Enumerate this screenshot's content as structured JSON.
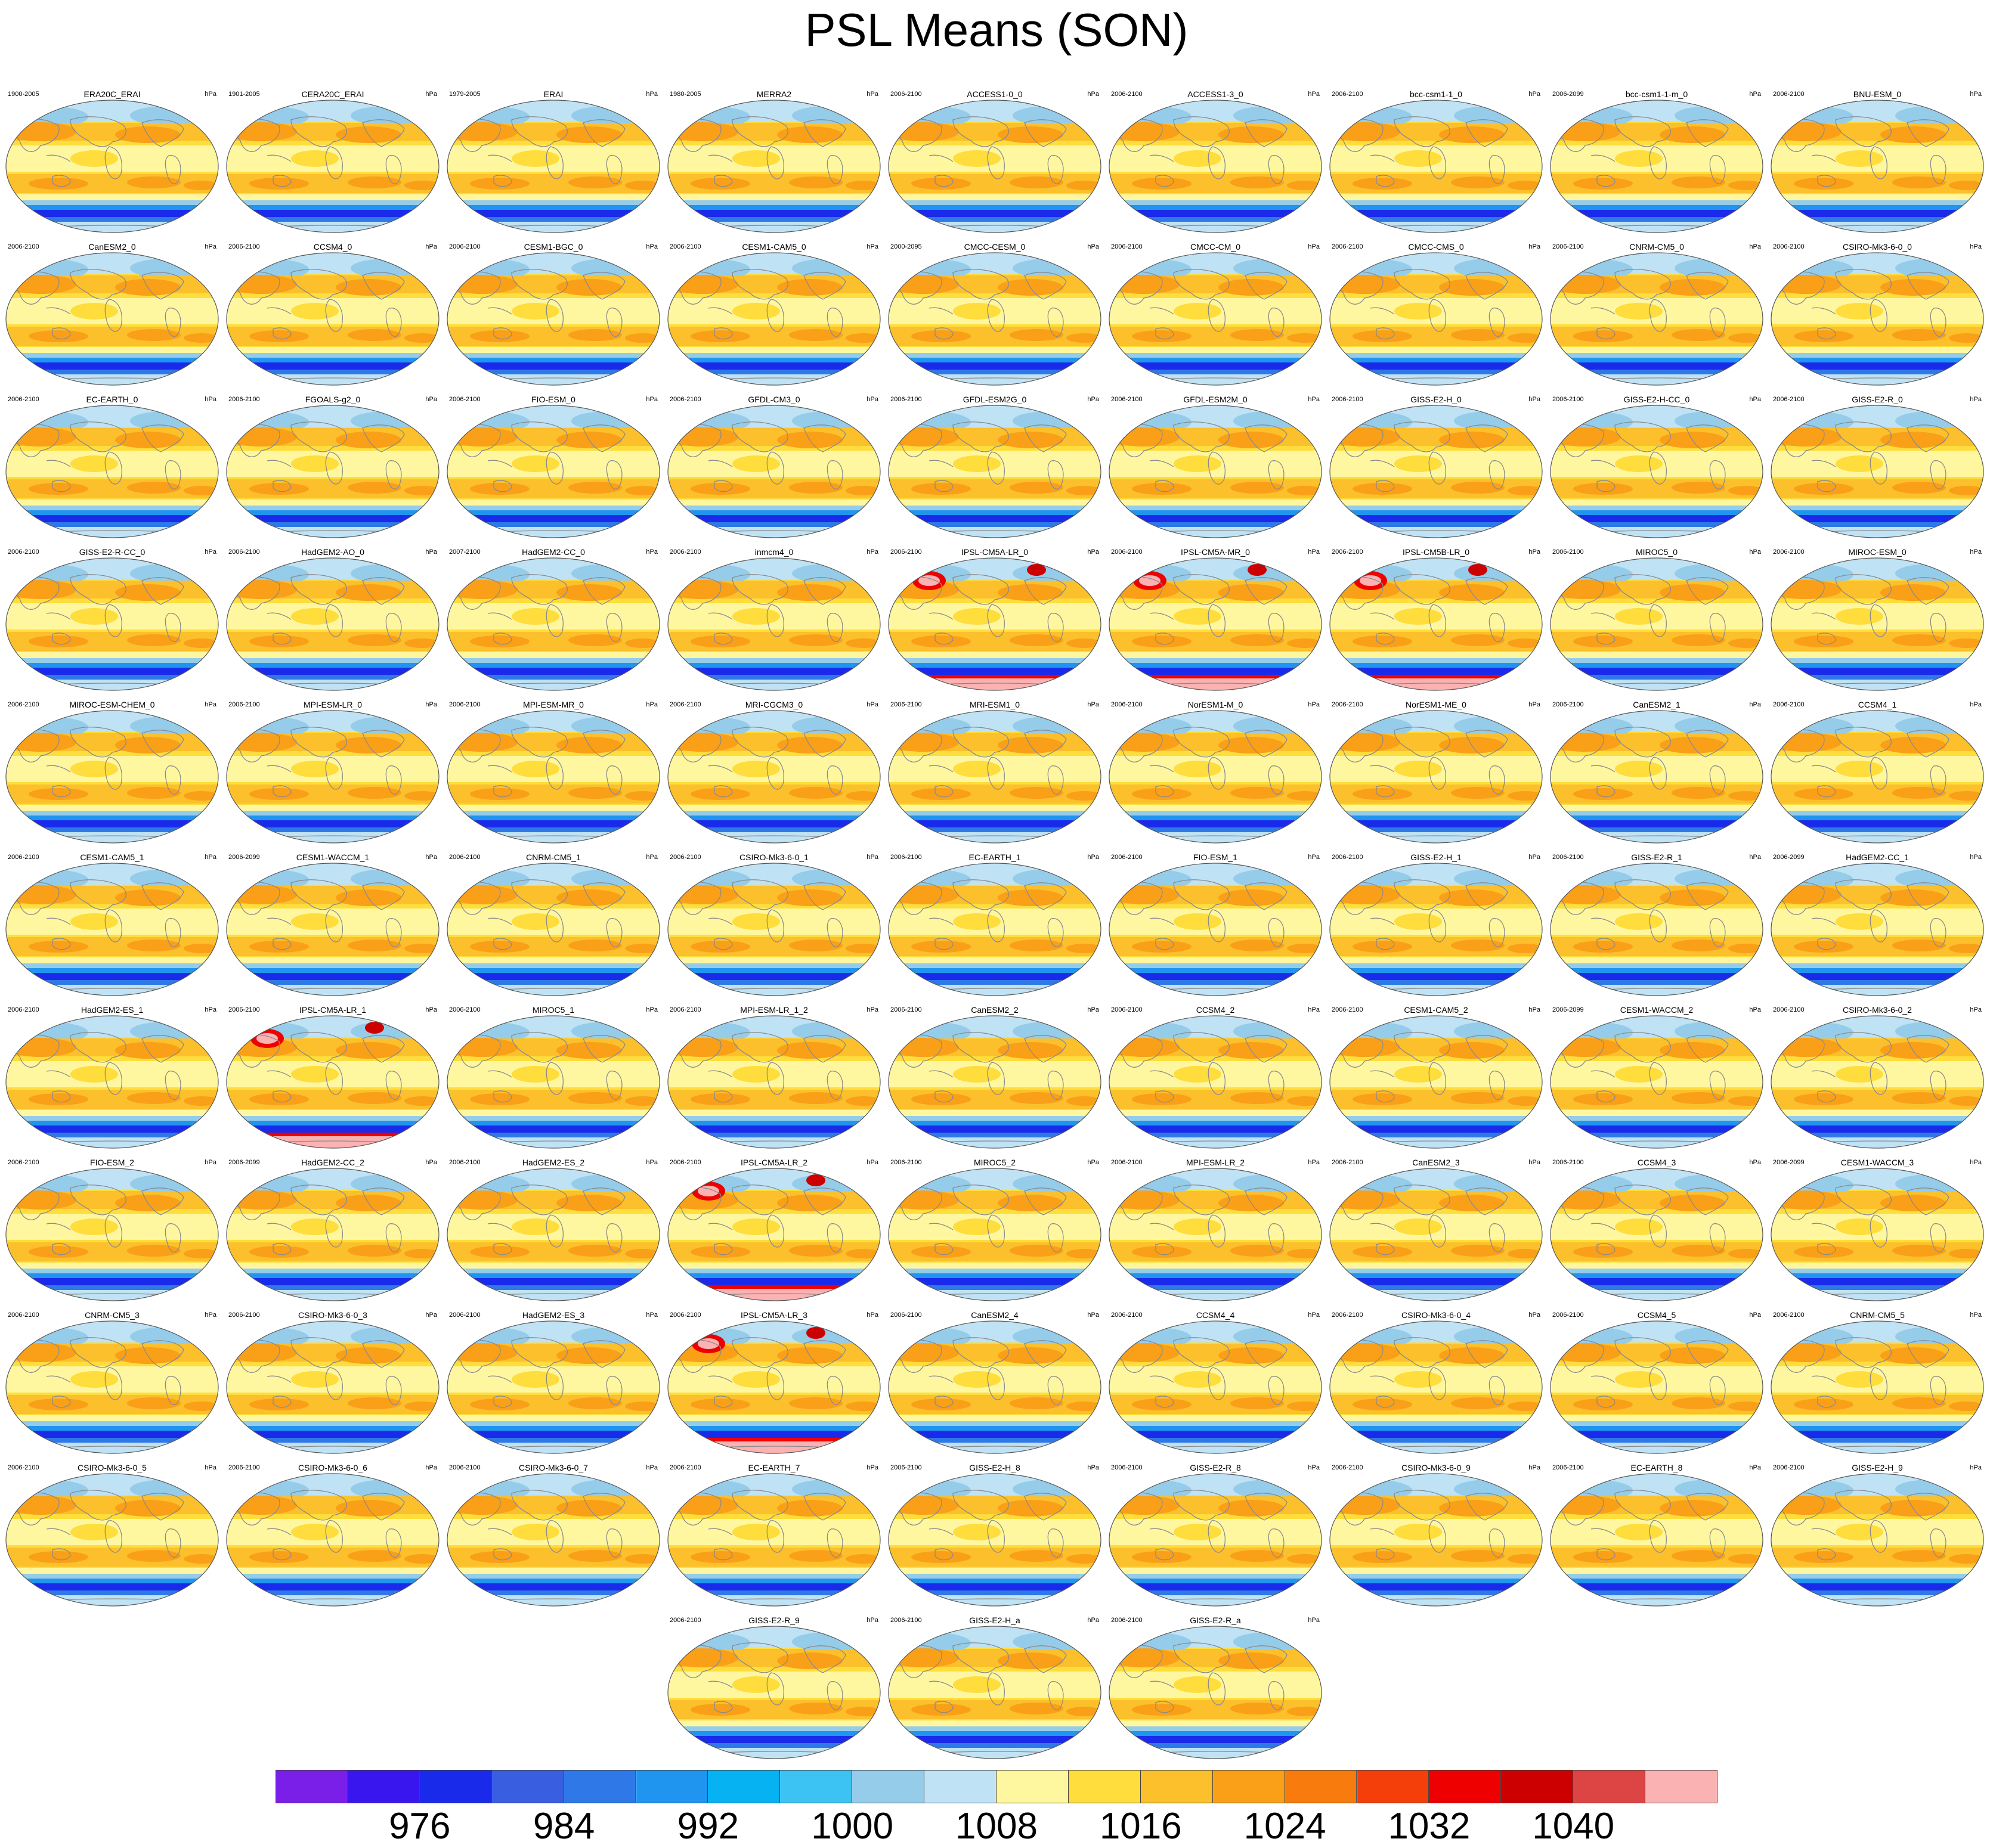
{
  "title": "PSL Means (SON)",
  "unit": "hPa",
  "panels": [
    {
      "name": "ERA20C_ERAI",
      "years": "1900-2005",
      "v": 0
    },
    {
      "name": "CERA20C_ERAI",
      "years": "1901-2005",
      "v": 0
    },
    {
      "name": "ERAI",
      "years": "1979-2005",
      "v": 0
    },
    {
      "name": "MERRA2",
      "years": "1980-2005",
      "v": 0
    },
    {
      "name": "ACCESS1-0_0",
      "years": "2006-2100",
      "v": 0
    },
    {
      "name": "ACCESS1-3_0",
      "years": "2006-2100",
      "v": 0
    },
    {
      "name": "bcc-csm1-1_0",
      "years": "2006-2100",
      "v": 0
    },
    {
      "name": "bcc-csm1-1-m_0",
      "years": "2006-2099",
      "v": 0
    },
    {
      "name": "BNU-ESM_0",
      "years": "2006-2100",
      "v": 0
    },
    {
      "name": "CanESM2_0",
      "years": "2006-2100",
      "v": 0
    },
    {
      "name": "CCSM4_0",
      "years": "2006-2100",
      "v": 0
    },
    {
      "name": "CESM1-BGC_0",
      "years": "2006-2100",
      "v": 0
    },
    {
      "name": "CESM1-CAM5_0",
      "years": "2006-2100",
      "v": 0
    },
    {
      "name": "CMCC-CESM_0",
      "years": "2000-2095",
      "v": 0
    },
    {
      "name": "CMCC-CM_0",
      "years": "2006-2100",
      "v": 0
    },
    {
      "name": "CMCC-CMS_0",
      "years": "2006-2100",
      "v": 0
    },
    {
      "name": "CNRM-CM5_0",
      "years": "2006-2100",
      "v": 0
    },
    {
      "name": "CSIRO-Mk3-6-0_0",
      "years": "2006-2100",
      "v": 0
    },
    {
      "name": "EC-EARTH_0",
      "years": "2006-2100",
      "v": 0
    },
    {
      "name": "FGOALS-g2_0",
      "years": "2006-2100",
      "v": 0
    },
    {
      "name": "FIO-ESM_0",
      "years": "2006-2100",
      "v": 0
    },
    {
      "name": "GFDL-CM3_0",
      "years": "2006-2100",
      "v": 0
    },
    {
      "name": "GFDL-ESM2G_0",
      "years": "2006-2100",
      "v": 0
    },
    {
      "name": "GFDL-ESM2M_0",
      "years": "2006-2100",
      "v": 0
    },
    {
      "name": "GISS-E2-H_0",
      "years": "2006-2100",
      "v": 0
    },
    {
      "name": "GISS-E2-H-CC_0",
      "years": "2006-2100",
      "v": 0
    },
    {
      "name": "GISS-E2-R_0",
      "years": "2006-2100",
      "v": 0
    },
    {
      "name": "GISS-E2-R-CC_0",
      "years": "2006-2100",
      "v": 0
    },
    {
      "name": "HadGEM2-AO_0",
      "years": "2006-2100",
      "v": 0
    },
    {
      "name": "HadGEM2-CC_0",
      "years": "2007-2100",
      "v": 0
    },
    {
      "name": "inmcm4_0",
      "years": "2006-2100",
      "v": 0
    },
    {
      "name": "IPSL-CM5A-LR_0",
      "years": "2006-2100",
      "v": 1
    },
    {
      "name": "IPSL-CM5A-MR_0",
      "years": "2006-2100",
      "v": 1
    },
    {
      "name": "IPSL-CM5B-LR_0",
      "years": "2006-2100",
      "v": 1
    },
    {
      "name": "MIROC5_0",
      "years": "2006-2100",
      "v": 0
    },
    {
      "name": "MIROC-ESM_0",
      "years": "2006-2100",
      "v": 0
    },
    {
      "name": "MIROC-ESM-CHEM_0",
      "years": "2006-2100",
      "v": 0
    },
    {
      "name": "MPI-ESM-LR_0",
      "years": "2006-2100",
      "v": 0
    },
    {
      "name": "MPI-ESM-MR_0",
      "years": "2006-2100",
      "v": 0
    },
    {
      "name": "MRI-CGCM3_0",
      "years": "2006-2100",
      "v": 0
    },
    {
      "name": "MRI-ESM1_0",
      "years": "2006-2100",
      "v": 0
    },
    {
      "name": "NorESM1-M_0",
      "years": "2006-2100",
      "v": 0
    },
    {
      "name": "NorESM1-ME_0",
      "years": "2006-2100",
      "v": 0
    },
    {
      "name": "CanESM2_1",
      "years": "2006-2100",
      "v": 0
    },
    {
      "name": "CCSM4_1",
      "years": "2006-2100",
      "v": 0
    },
    {
      "name": "CESM1-CAM5_1",
      "years": "2006-2100",
      "v": 0
    },
    {
      "name": "CESM1-WACCM_1",
      "years": "2006-2099",
      "v": 0
    },
    {
      "name": "CNRM-CM5_1",
      "years": "2006-2100",
      "v": 0
    },
    {
      "name": "CSIRO-Mk3-6-0_1",
      "years": "2006-2100",
      "v": 0
    },
    {
      "name": "EC-EARTH_1",
      "years": "2006-2100",
      "v": 0
    },
    {
      "name": "FIO-ESM_1",
      "years": "2006-2100",
      "v": 0
    },
    {
      "name": "GISS-E2-H_1",
      "years": "2006-2100",
      "v": 0
    },
    {
      "name": "GISS-E2-R_1",
      "years": "2006-2100",
      "v": 0
    },
    {
      "name": "HadGEM2-CC_1",
      "years": "2006-2099",
      "v": 0
    },
    {
      "name": "HadGEM2-ES_1",
      "years": "2006-2100",
      "v": 0
    },
    {
      "name": "IPSL-CM5A-LR_1",
      "years": "2006-2100",
      "v": 1
    },
    {
      "name": "MIROC5_1",
      "years": "2006-2100",
      "v": 0
    },
    {
      "name": "MPI-ESM-LR_1_2",
      "years": "2006-2100",
      "v": 0
    },
    {
      "name": "CanESM2_2",
      "years": "2006-2100",
      "v": 0
    },
    {
      "name": "CCSM4_2",
      "years": "2006-2100",
      "v": 0
    },
    {
      "name": "CESM1-CAM5_2",
      "years": "2006-2100",
      "v": 0
    },
    {
      "name": "CESM1-WACCM_2",
      "years": "2006-2099",
      "v": 0
    },
    {
      "name": "CSIRO-Mk3-6-0_2",
      "years": "2006-2100",
      "v": 0
    },
    {
      "name": "FIO-ESM_2",
      "years": "2006-2100",
      "v": 0
    },
    {
      "name": "HadGEM2-CC_2",
      "years": "2006-2099",
      "v": 0
    },
    {
      "name": "HadGEM2-ES_2",
      "years": "2006-2100",
      "v": 0
    },
    {
      "name": "IPSL-CM5A-LR_2",
      "years": "2006-2100",
      "v": 1
    },
    {
      "name": "MIROC5_2",
      "years": "2006-2100",
      "v": 0
    },
    {
      "name": "MPI-ESM-LR_2",
      "years": "2006-2100",
      "v": 0
    },
    {
      "name": "CanESM2_3",
      "years": "2006-2100",
      "v": 0
    },
    {
      "name": "CCSM4_3",
      "years": "2006-2100",
      "v": 0
    },
    {
      "name": "CESM1-WACCM_3",
      "years": "2006-2099",
      "v": 0
    },
    {
      "name": "CNRM-CM5_3",
      "years": "2006-2100",
      "v": 0
    },
    {
      "name": "CSIRO-Mk3-6-0_3",
      "years": "2006-2100",
      "v": 0
    },
    {
      "name": "HadGEM2-ES_3",
      "years": "2006-2100",
      "v": 0
    },
    {
      "name": "IPSL-CM5A-LR_3",
      "years": "2006-2100",
      "v": 1
    },
    {
      "name": "CanESM2_4",
      "years": "2006-2100",
      "v": 0
    },
    {
      "name": "CCSM4_4",
      "years": "2006-2100",
      "v": 0
    },
    {
      "name": "CSIRO-Mk3-6-0_4",
      "years": "2006-2100",
      "v": 0
    },
    {
      "name": "CCSM4_5",
      "years": "2006-2100",
      "v": 0
    },
    {
      "name": "CNRM-CM5_5",
      "years": "2006-2100",
      "v": 0
    },
    {
      "name": "CSIRO-Mk3-6-0_5",
      "years": "2006-2100",
      "v": 0
    },
    {
      "name": "CSIRO-Mk3-6-0_6",
      "years": "2006-2100",
      "v": 0
    },
    {
      "name": "CSIRO-Mk3-6-0_7",
      "years": "2006-2100",
      "v": 0
    },
    {
      "name": "EC-EARTH_7",
      "years": "2006-2100",
      "v": 0
    },
    {
      "name": "GISS-E2-H_8",
      "years": "2006-2100",
      "v": 0
    },
    {
      "name": "GISS-E2-R_8",
      "years": "2006-2100",
      "v": 0
    },
    {
      "name": "CSIRO-Mk3-6-0_9",
      "years": "2006-2100",
      "v": 0
    },
    {
      "name": "EC-EARTH_8",
      "years": "2006-2100",
      "v": 0
    },
    {
      "name": "GISS-E2-H_9",
      "years": "2006-2100",
      "v": 0
    },
    {
      "name": "GISS-E2-R_9",
      "years": "2006-2100",
      "v": 0
    },
    {
      "name": "GISS-E2-H_a",
      "years": "2006-2100",
      "v": 0
    },
    {
      "name": "GISS-E2-R_a",
      "years": "2006-2100",
      "v": 0
    }
  ],
  "colorbar": {
    "colors": [
      "#7a1fe8",
      "#3a16ee",
      "#1a2aeb",
      "#3a5ee0",
      "#2f78e8",
      "#1f95f0",
      "#06b2f2",
      "#3dc3f3",
      "#95ccea",
      "#bfe2f5",
      "#fff7a0",
      "#fedd3c",
      "#fbc02b",
      "#f9a018",
      "#f77b0d",
      "#f53f0b",
      "#ee0000",
      "#cc0000",
      "#dd4444",
      "#fbb2b2"
    ],
    "ticks": [
      "976",
      "984",
      "992",
      "1000",
      "1008",
      "1016",
      "1024",
      "1032",
      "1040"
    ]
  }
}
